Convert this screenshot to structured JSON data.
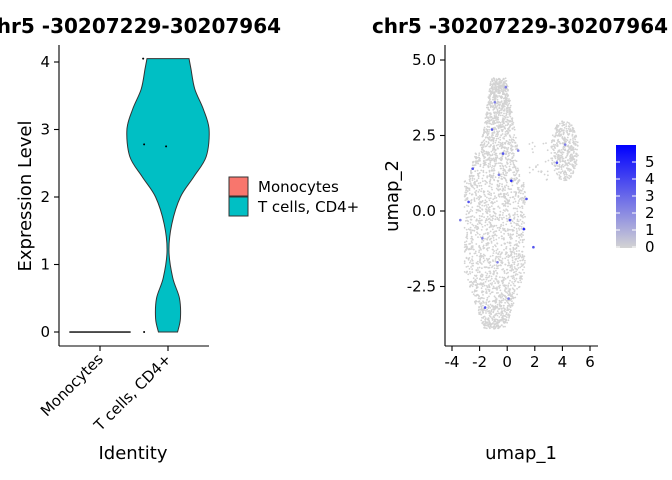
{
  "chart_data": [
    {
      "type": "violin",
      "title": "chr5 -30207229-30207964",
      "xlabel": "Identity",
      "ylabel": "Expression Level",
      "ylim": [
        -0.2,
        4.2
      ],
      "yticks": [
        0,
        1,
        2,
        3,
        4
      ],
      "categories": [
        "Monocytes",
        "T cells, CD4+"
      ],
      "colors": [
        "#F8766D",
        "#00BFC4"
      ],
      "series": [
        {
          "name": "Monocytes",
          "values_min": 0,
          "values_max": 0,
          "points": [
            {
              "x_jitter": -0.3,
              "y": 0
            },
            {
              "x_jitter": -0.2,
              "y": 0
            },
            {
              "x_jitter": -0.1,
              "y": 0
            },
            {
              "x_jitter": 0.0,
              "y": 0
            },
            {
              "x_jitter": 0.1,
              "y": 0
            },
            {
              "x_jitter": 0.2,
              "y": 0
            },
            {
              "x_jitter": 0.3,
              "y": 0
            }
          ]
        },
        {
          "name": "T cells, CD4+",
          "values_min": 0,
          "values_max": 4.05,
          "density": [
            {
              "y": 0.0,
              "w": 0.1
            },
            {
              "y": 0.2,
              "w": 0.13
            },
            {
              "y": 0.5,
              "w": 0.12
            },
            {
              "y": 0.8,
              "w": 0.05
            },
            {
              "y": 1.2,
              "w": 0.01
            },
            {
              "y": 1.6,
              "w": 0.04
            },
            {
              "y": 2.0,
              "w": 0.13
            },
            {
              "y": 2.3,
              "w": 0.27
            },
            {
              "y": 2.6,
              "w": 0.4
            },
            {
              "y": 3.0,
              "w": 0.43
            },
            {
              "y": 3.3,
              "w": 0.37
            },
            {
              "y": 3.6,
              "w": 0.28
            },
            {
              "y": 3.9,
              "w": 0.24
            },
            {
              "y": 4.05,
              "w": 0.22
            }
          ],
          "points": [
            {
              "x_jitter": -0.26,
              "y": 4.05
            },
            {
              "x_jitter": -0.25,
              "y": 2.78
            },
            {
              "x_jitter": -0.02,
              "y": 2.75
            },
            {
              "x_jitter": -0.25,
              "y": 0
            }
          ]
        }
      ],
      "legend": {
        "position": "right",
        "entries": [
          "Monocytes",
          "T cells, CD4+"
        ]
      }
    },
    {
      "type": "scatter",
      "title": "chr5 -30207229-30207964",
      "xlabel": "umap_1",
      "ylabel": "umap_2",
      "xlim": [
        -4.6,
        6.6
      ],
      "ylim": [
        -4.4,
        5.5
      ],
      "xticks": [
        -4,
        -2,
        0,
        2,
        4,
        6
      ],
      "yticks": [
        -2.5,
        0.0,
        2.5,
        5.0
      ],
      "xtick_labels": [
        "-4",
        "-2",
        "0",
        "2",
        "4",
        "6"
      ],
      "ytick_labels": [
        "-2.5",
        "0.0",
        "2.5",
        "5.0"
      ],
      "point_color_low": "#D3D3D3",
      "point_color_high": "#0000FF",
      "colorbar": {
        "min": 0,
        "max": 5,
        "ticks": [
          0,
          1,
          2,
          3,
          4,
          5
        ],
        "tick_labels": [
          "0",
          "1",
          "2",
          "3",
          "4",
          "5"
        ],
        "position": "right"
      },
      "clusters": [
        {
          "shape": "main",
          "approx_points": 2600,
          "x_range": [
            -3.9,
            2.6
          ],
          "y_range": [
            -3.9,
            4.4
          ]
        },
        {
          "shape": "island",
          "approx_points": 400,
          "x_range": [
            3.1,
            5.2
          ],
          "y_range": [
            1.0,
            3.0
          ]
        }
      ],
      "highlighted_points": [
        {
          "x": -0.1,
          "y": 4.1,
          "v": 1
        },
        {
          "x": -1.1,
          "y": 2.7,
          "v": 2
        },
        {
          "x": -0.6,
          "y": 1.2,
          "v": 1
        },
        {
          "x": -2.5,
          "y": 1.4,
          "v": 2
        },
        {
          "x": -0.3,
          "y": 1.9,
          "v": 2
        },
        {
          "x": 0.3,
          "y": 1.0,
          "v": 3
        },
        {
          "x": 0.8,
          "y": 2.0,
          "v": 1
        },
        {
          "x": -2.8,
          "y": 0.3,
          "v": 2
        },
        {
          "x": -3.4,
          "y": -0.3,
          "v": 1
        },
        {
          "x": -1.8,
          "y": -0.9,
          "v": 1
        },
        {
          "x": 0.2,
          "y": -0.3,
          "v": 2
        },
        {
          "x": 1.2,
          "y": -0.6,
          "v": 3
        },
        {
          "x": 1.9,
          "y": -1.2,
          "v": 2
        },
        {
          "x": -0.7,
          "y": -1.7,
          "v": 1
        },
        {
          "x": -1.6,
          "y": -3.2,
          "v": 2
        },
        {
          "x": 0.1,
          "y": -2.9,
          "v": 1
        },
        {
          "x": 4.2,
          "y": 2.2,
          "v": 1
        },
        {
          "x": 3.6,
          "y": 1.6,
          "v": 2
        },
        {
          "x": -0.9,
          "y": 3.6,
          "v": 1
        },
        {
          "x": 1.4,
          "y": 0.4,
          "v": 2
        }
      ]
    }
  ]
}
